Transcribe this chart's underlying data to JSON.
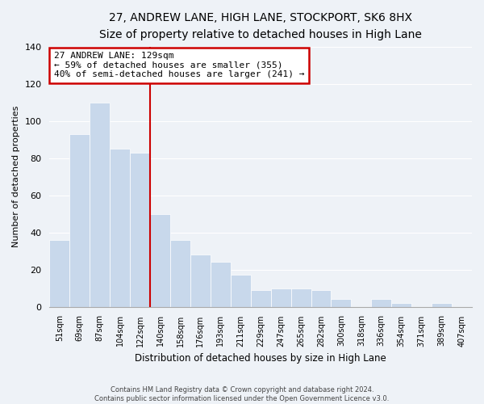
{
  "title": "27, ANDREW LANE, HIGH LANE, STOCKPORT, SK6 8HX",
  "subtitle": "Size of property relative to detached houses in High Lane",
  "xlabel": "Distribution of detached houses by size in High Lane",
  "ylabel": "Number of detached properties",
  "bar_labels": [
    "51sqm",
    "69sqm",
    "87sqm",
    "104sqm",
    "122sqm",
    "140sqm",
    "158sqm",
    "176sqm",
    "193sqm",
    "211sqm",
    "229sqm",
    "247sqm",
    "265sqm",
    "282sqm",
    "300sqm",
    "318sqm",
    "336sqm",
    "354sqm",
    "371sqm",
    "389sqm",
    "407sqm"
  ],
  "bar_values": [
    36,
    93,
    110,
    85,
    83,
    50,
    36,
    28,
    24,
    17,
    9,
    10,
    10,
    9,
    4,
    0,
    4,
    2,
    0,
    2,
    0
  ],
  "bar_color": "#c8d8eb",
  "bar_edge_color": "#ffffff",
  "vline_x_index": 4.5,
  "vline_color": "#cc0000",
  "annotation_title": "27 ANDREW LANE: 129sqm",
  "annotation_line1": "← 59% of detached houses are smaller (355)",
  "annotation_line2": "40% of semi-detached houses are larger (241) →",
  "annotation_box_color": "#ffffff",
  "annotation_box_edge": "#cc0000",
  "ylim": [
    0,
    140
  ],
  "yticks": [
    0,
    20,
    40,
    60,
    80,
    100,
    120,
    140
  ],
  "footer1": "Contains HM Land Registry data © Crown copyright and database right 2024.",
  "footer2": "Contains public sector information licensed under the Open Government Licence v3.0.",
  "bg_color": "#eef2f7",
  "grid_color": "#ffffff"
}
